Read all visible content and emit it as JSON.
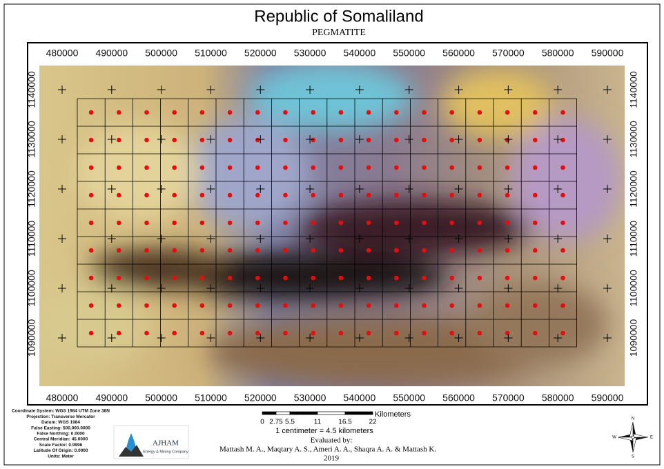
{
  "header": {
    "title": "Republic of Somaliland",
    "subtitle": "PEGMATITE"
  },
  "map": {
    "x_ticks": [
      480000,
      490000,
      500000,
      510000,
      520000,
      530000,
      540000,
      550000,
      560000,
      570000,
      580000,
      590000
    ],
    "y_ticks": [
      1090000,
      1100000,
      1110000,
      1120000,
      1130000,
      1140000
    ]
  },
  "projection": [
    "Coordinate System: WGS 1984 UTM Zone 38N",
    "Projection: Transverse Mercator",
    "Datum: WGS 1984",
    "False Easting: 500,000.0000",
    "False Northing: 0.0000",
    "Central Meridian: 45.0000",
    "Scale Factor: 0.9996",
    "Latitude Of Origin: 0.0000",
    "Units: Meter"
  ],
  "scale_bar": {
    "unit": "Kilometers",
    "ticks": [
      0,
      2.75,
      5.5,
      11,
      16.5,
      22
    ],
    "note": "1 centimeter = 4.5 kilometers"
  },
  "logo": {
    "name": "AJHAM",
    "tagline": "Energy & Mining Company"
  },
  "credits": {
    "label": "Evaluated by:",
    "authors": "Mattash M. A., Maqtary A. S., Ameri A. A., Shaqra A. A. &  Mattash K.",
    "year": "2019"
  },
  "north_arrow": {
    "n": "N",
    "e": "E",
    "s": "S",
    "w": "W"
  }
}
